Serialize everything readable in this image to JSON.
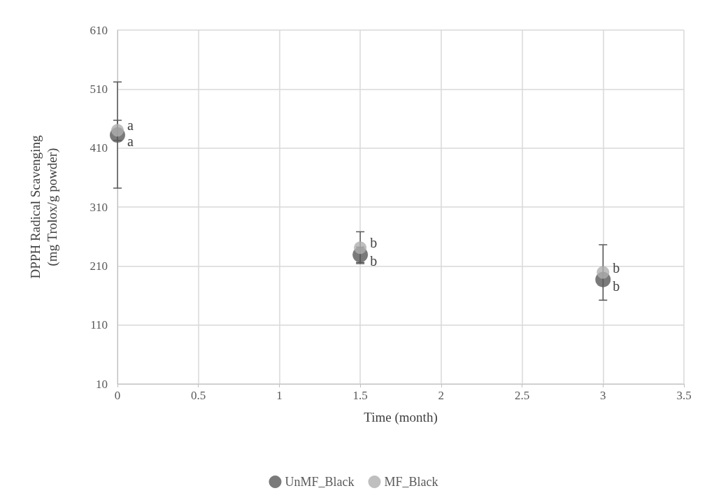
{
  "chart_data": {
    "type": "scatter",
    "xlabel": "Time (month)",
    "ylabel": "DPPH Radical Scavenging\n(mg Trolox/g powder)",
    "xlim": [
      0,
      3.5
    ],
    "xticks": [
      0,
      0.5,
      1,
      1.5,
      2,
      2.5,
      3,
      3.5
    ],
    "ylim": [
      10,
      610
    ],
    "yticks": [
      10,
      110,
      210,
      310,
      410,
      510,
      610
    ],
    "grid": true,
    "legend": "bottom",
    "marker": "circle",
    "series": [
      {
        "name": "UnMF_Black",
        "color": "#595959",
        "x": [
          0,
          1.5,
          3
        ],
        "values": [
          432,
          229,
          187
        ],
        "errors": [
          90,
          13,
          null
        ]
      },
      {
        "name": "MF_Black",
        "color": "#afafaf",
        "x": [
          0,
          1.5,
          3
        ],
        "values": [
          440,
          241,
          199
        ],
        "errors": [
          17,
          27,
          47
        ]
      }
    ],
    "annotations": [
      {
        "text": "a",
        "x": 0,
        "y": 432
      },
      {
        "text": "a",
        "x": 0,
        "y": 440
      },
      {
        "text": "b",
        "x": 1.5,
        "y": 229
      },
      {
        "text": "b",
        "x": 1.5,
        "y": 241
      },
      {
        "text": "b",
        "x": 3,
        "y": 187
      },
      {
        "text": "b",
        "x": 3,
        "y": 199
      }
    ]
  }
}
